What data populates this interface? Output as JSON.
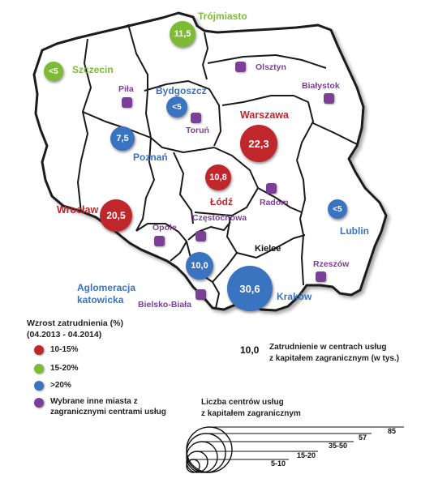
{
  "cities": {
    "trojmiasto": {
      "name": "Trójmiasto",
      "value": "11,5"
    },
    "szczecin": {
      "name": "Szczecin",
      "value": "<5"
    },
    "bydgoszcz": {
      "name": "Bydgoszcz",
      "value": "<5"
    },
    "olsztyn": {
      "name": "Olsztyn"
    },
    "bialystok": {
      "name": "Białystok"
    },
    "pila": {
      "name": "Piła"
    },
    "torun": {
      "name": "Toruń"
    },
    "poznan": {
      "name": "Poznań",
      "value": "7,5"
    },
    "warszawa": {
      "name": "Warszawa",
      "value": "22,3"
    },
    "lodz": {
      "name": "Łódź",
      "value": "10,8"
    },
    "radom": {
      "name": "Radom"
    },
    "lublin": {
      "name": "Lublin",
      "value": "<5"
    },
    "wroclaw": {
      "name": "Wrocław",
      "value": "20,5"
    },
    "czestochowa": {
      "name": "Częstochowa"
    },
    "opole": {
      "name": "Opole"
    },
    "kielce": {
      "name": "Kielce"
    },
    "katowice": {
      "name_line1": "Aglomeracja",
      "name_line2": "katowicka",
      "value": "10,0"
    },
    "krakow": {
      "name": "Kraków",
      "value": "30,6"
    },
    "rzeszow": {
      "name": "Rzeszów"
    },
    "bielsko": {
      "name": "Bielsko-Biała"
    }
  },
  "legend": {
    "title_line1": "Wzrost zatrudnienia (%)",
    "title_line2": "(04.2013 - 04.2014)",
    "items": [
      {
        "label": "10-15%",
        "color": "#c0272d"
      },
      {
        "label": "15-20%",
        "color": "#7dbb35"
      },
      {
        "label": ">20%",
        "color": "#3a73c0"
      },
      {
        "label_line1": "Wybrane inne miasta z",
        "label_line2": "zagranicznymi centrami usług",
        "color": "#7b3f97"
      }
    ]
  },
  "value_note": {
    "sample": "10,0",
    "line1": "Zatrudnienie w centrach usług",
    "line2": "z kapitałem zagranicznym (w tys.)"
  },
  "size_legend": {
    "title_line1": "Liczba centrów usług",
    "title_line2": "z kapitałem zagranicznym",
    "labels": [
      "85",
      "57",
      "35-50",
      "15-20",
      "5-10"
    ]
  },
  "colors": {
    "red": "#c0272d",
    "green": "#7dbb35",
    "blue": "#3a73c0",
    "purple": "#7b3f97"
  }
}
